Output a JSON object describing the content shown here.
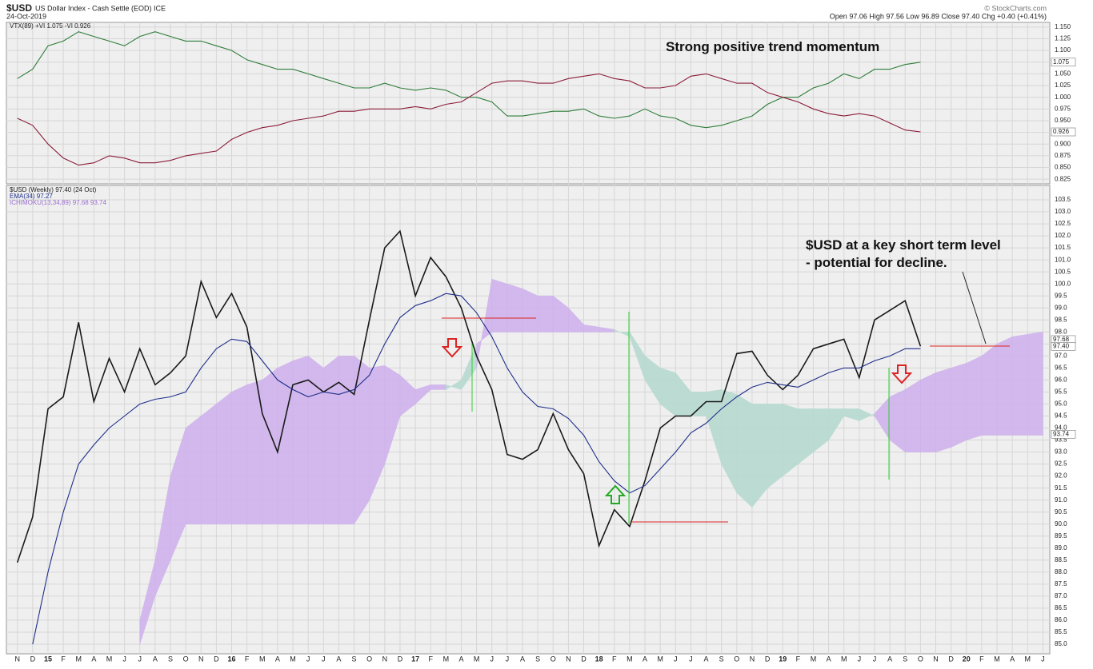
{
  "header": {
    "title": "$USD",
    "subtitle": "US Dollar Index - Cash Settle (EOD) ICE",
    "date": "24-Oct-2019",
    "ohlc": "Open 97.06 High 97.56 Low 96.89 Close 97.40 Chg +0.40 (+0.41%)",
    "credit": "© StockCharts.com"
  },
  "chart_data": [
    {
      "type": "line",
      "legend": [
        "VTX(89) +VI 1.075 -VI 0.926"
      ],
      "annotations": [
        "Strong positive trend momentum"
      ],
      "ylim": [
        0.815,
        1.16
      ],
      "yticks": [
        0.825,
        {
          "value": 0.85,
          "label": "0.850"
        },
        0.875,
        {
          "value": 0.9,
          "label": "0.900"
        },
        0.925,
        {
          "value": 0.95,
          "label": "0.950"
        },
        0.975,
        {
          "value": 1,
          "label": "1.000"
        },
        1.025,
        {
          "value": 1.05,
          "label": "1.050"
        },
        1.075,
        {
          "value": 1.1,
          "label": "1.100"
        },
        1.125,
        {
          "value": 1.15,
          "label": "1.150"
        }
      ],
      "tags": [
        1.075,
        0.926
      ],
      "series": [
        {
          "color": "#2e7d3a",
          "values": [
            1.04,
            1.06,
            1.11,
            1.12,
            1.14,
            1.13,
            1.12,
            1.11,
            1.13,
            1.14,
            1.13,
            1.12,
            1.12,
            1.11,
            1.1,
            1.08,
            1.07,
            1.06,
            1.06,
            1.05,
            1.04,
            1.03,
            1.02,
            1.02,
            1.03,
            1.02,
            1.015,
            1.02,
            1.015,
            1.0,
            1.0,
            0.99,
            0.96,
            0.96,
            0.965,
            0.97,
            0.97,
            0.975,
            0.96,
            0.955,
            0.96,
            0.975,
            0.96,
            0.955,
            0.94,
            0.935,
            0.94,
            0.95,
            0.96,
            0.985,
            1.0,
            1.0,
            1.02,
            1.03,
            1.05,
            1.04,
            1.06,
            1.06,
            1.07,
            1.075,
            null,
            null,
            null,
            null,
            null,
            null,
            null,
            null
          ]
        },
        {
          "color": "#8b1e3a",
          "values": [
            0.955,
            0.94,
            0.9,
            0.87,
            0.855,
            0.86,
            0.875,
            0.87,
            0.86,
            0.86,
            0.865,
            0.875,
            0.88,
            0.885,
            0.91,
            0.925,
            0.935,
            0.94,
            0.95,
            0.955,
            0.96,
            0.97,
            0.97,
            0.975,
            0.975,
            0.975,
            0.98,
            0.975,
            0.985,
            0.99,
            1.01,
            1.03,
            1.035,
            1.035,
            1.03,
            1.03,
            1.04,
            1.045,
            1.05,
            1.04,
            1.035,
            1.02,
            1.02,
            1.025,
            1.045,
            1.05,
            1.04,
            1.03,
            1.03,
            1.01,
            1.0,
            0.99,
            0.975,
            0.965,
            0.96,
            0.965,
            0.96,
            0.945,
            0.93,
            0.926,
            null,
            null,
            null,
            null,
            null,
            null,
            null,
            null
          ]
        }
      ]
    },
    {
      "type": "line",
      "legend": [
        "$USD (Weekly) 97.40 (24 Oct)",
        "EMA(34) 97.27",
        "ICHIMOKU(13,34,89) 97.68 93.74"
      ],
      "annotations": [
        "$USD at a key short term level",
        "- potential for decline."
      ],
      "categories": [
        "N",
        "D",
        "15",
        "F",
        "M",
        "A",
        "M",
        "J",
        "J",
        "A",
        "S",
        "O",
        "N",
        "D",
        "16",
        "F",
        "M",
        "A",
        "M",
        "J",
        "J",
        "A",
        "S",
        "O",
        "N",
        "D",
        "17",
        "F",
        "M",
        "A",
        "M",
        "J",
        "J",
        "A",
        "S",
        "O",
        "N",
        "D",
        "18",
        "F",
        "M",
        "A",
        "M",
        "J",
        "J",
        "A",
        "S",
        "O",
        "N",
        "D",
        "19",
        "F",
        "M",
        "A",
        "M",
        "J",
        "J",
        "A",
        "S",
        "O",
        "N",
        "D",
        "20",
        "F",
        "M",
        "A",
        "M",
        "J"
      ],
      "ylim": [
        84.6,
        104.1
      ],
      "yticks": [
        {
          "value": 85,
          "label": "85.0"
        },
        85.5,
        {
          "value": 86,
          "label": "86.0"
        },
        86.5,
        {
          "value": 87,
          "label": "87.0"
        },
        87.5,
        {
          "value": 88,
          "label": "88.0"
        },
        88.5,
        {
          "value": 89,
          "label": "89.0"
        },
        89.5,
        {
          "value": 90,
          "label": "90.0"
        },
        90.5,
        {
          "value": 91,
          "label": "91.0"
        },
        91.5,
        {
          "value": 92,
          "label": "92.0"
        },
        92.5,
        {
          "value": 93,
          "label": "93.0"
        },
        93.5,
        {
          "value": 94,
          "label": "94.0"
        },
        94.5,
        {
          "value": 95,
          "label": "95.0"
        },
        95.5,
        {
          "value": 96,
          "label": "96.0"
        },
        96.5,
        {
          "value": 97,
          "label": "97.0"
        },
        97.5,
        {
          "value": 98,
          "label": "98.0"
        },
        98.5,
        {
          "value": 99,
          "label": "99.0"
        },
        99.5,
        {
          "value": 100,
          "label": "100.0"
        },
        100.5,
        {
          "value": 101,
          "label": "101.0"
        },
        101.5,
        {
          "value": 102,
          "label": "102.0"
        },
        102.5,
        {
          "value": 103,
          "label": "103.0"
        },
        103.5
      ],
      "tags": [
        97.68,
        {
          "value": 97.4,
          "label": "97.40"
        },
        93.74
      ],
      "cloud": {
        "colors": [
          "#cfb3ec",
          "#b7dbd0"
        ],
        "span_a": [
          null,
          null,
          null,
          null,
          null,
          null,
          null,
          null,
          85.0,
          87.0,
          88.5,
          90.0,
          90.0,
          90.0,
          90.0,
          90.0,
          90.0,
          90.0,
          90.0,
          90.0,
          90.0,
          90.0,
          90.0,
          91.0,
          92.5,
          94.5,
          95.0,
          95.6,
          95.6,
          96.0,
          97.5,
          98.0,
          98.0,
          98.0,
          98.0,
          98.0,
          98.0,
          98.0,
          98.0,
          98.0,
          98.0,
          97.0,
          96.5,
          96.3,
          95.5,
          95.5,
          95.6,
          95.4,
          95.0,
          95.0,
          95.0,
          94.8,
          94.8,
          94.8,
          94.8,
          94.8,
          94.5,
          93.5,
          93.0,
          93.0,
          93.0,
          93.2,
          93.5,
          93.7,
          93.7,
          93.7,
          93.7,
          93.7
        ],
        "span_b": [
          null,
          null,
          null,
          null,
          null,
          null,
          null,
          null,
          86.0,
          88.5,
          92.0,
          94.0,
          94.5,
          95.0,
          95.5,
          95.8,
          96.0,
          96.5,
          96.8,
          97.0,
          96.5,
          97.0,
          97.0,
          96.5,
          96.6,
          96.2,
          95.6,
          95.8,
          95.8,
          95.6,
          96.5,
          100.2,
          100.0,
          99.8,
          99.5,
          99.5,
          99.0,
          98.3,
          98.2,
          98.1,
          97.8,
          96.0,
          95.0,
          94.5,
          94.5,
          94.5,
          92.5,
          91.3,
          90.7,
          91.5,
          92.0,
          92.5,
          93.0,
          93.5,
          94.5,
          94.3,
          94.6,
          95.3,
          95.6,
          96.0,
          96.3,
          96.5,
          96.7,
          97.0,
          97.5,
          97.8,
          97.9,
          98.0
        ]
      },
      "series": [
        {
          "color": "#1a1a1a",
          "values": [
            88.4,
            90.3,
            94.8,
            95.3,
            98.4,
            95.1,
            96.9,
            95.5,
            97.3,
            95.8,
            96.3,
            97.0,
            100.1,
            98.6,
            99.6,
            98.2,
            94.6,
            93.0,
            95.8,
            96.0,
            95.5,
            95.9,
            95.4,
            98.5,
            101.5,
            102.2,
            99.5,
            101.1,
            100.3,
            99.0,
            97.0,
            95.6,
            92.9,
            92.7,
            93.1,
            94.6,
            93.1,
            92.1,
            89.1,
            90.6,
            89.9,
            91.8,
            94.0,
            94.5,
            94.5,
            95.1,
            95.1,
            97.1,
            97.2,
            96.2,
            95.6,
            96.2,
            97.3,
            97.5,
            97.7,
            96.1,
            98.5,
            98.9,
            99.3,
            97.4,
            null,
            null,
            null,
            null,
            null,
            null,
            null,
            null
          ]
        },
        {
          "color": "#1f2f8a",
          "values": [
            null,
            85.0,
            88.0,
            90.5,
            92.5,
            93.3,
            94.0,
            94.5,
            95.0,
            95.2,
            95.3,
            95.5,
            96.5,
            97.3,
            97.7,
            97.6,
            96.8,
            96.0,
            95.6,
            95.3,
            95.5,
            95.4,
            95.6,
            96.2,
            97.5,
            98.6,
            99.1,
            99.3,
            99.6,
            99.5,
            98.8,
            97.8,
            96.5,
            95.5,
            94.9,
            94.8,
            94.4,
            93.7,
            92.6,
            91.8,
            91.3,
            91.6,
            92.3,
            93.0,
            93.8,
            94.2,
            94.8,
            95.3,
            95.7,
            95.9,
            95.8,
            95.7,
            96.0,
            96.3,
            96.5,
            96.5,
            96.8,
            97.0,
            97.3,
            97.3,
            null,
            null,
            null,
            null,
            null,
            null,
            null,
            null
          ]
        }
      ]
    }
  ]
}
